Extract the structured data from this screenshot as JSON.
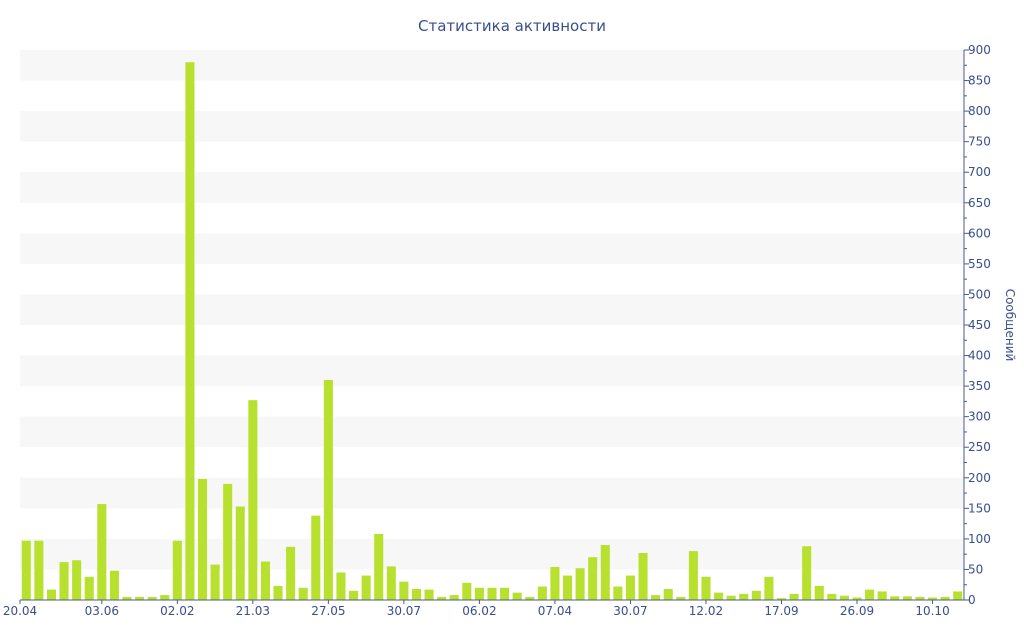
{
  "colors": {
    "bar": "#b8e02f",
    "text": "#3a4e8c",
    "axis": "#4a5a8c",
    "band": "#f7f7f7",
    "background": "#ffffff"
  },
  "chart_data": {
    "type": "bar",
    "title": "Статистика активности",
    "xlabel": "",
    "ylabel": "Сообщений",
    "y_axis_side": "right",
    "ylim": [
      0,
      900
    ],
    "y_ticks": [
      0,
      50,
      100,
      150,
      200,
      250,
      300,
      350,
      400,
      450,
      500,
      550,
      600,
      650,
      700,
      750,
      800,
      850,
      900
    ],
    "grid": "alternating horizontal bands",
    "legend": "none",
    "x_tick_labels": [
      {
        "index": 0,
        "label": "20.04"
      },
      {
        "index": 6,
        "label": "03.06"
      },
      {
        "index": 12,
        "label": "02.02"
      },
      {
        "index": 18,
        "label": "21.03"
      },
      {
        "index": 24,
        "label": "27.05"
      },
      {
        "index": 30,
        "label": "30.07"
      },
      {
        "index": 36,
        "label": "06.02"
      },
      {
        "index": 42,
        "label": "07.04"
      },
      {
        "index": 48,
        "label": "30.07"
      },
      {
        "index": 54,
        "label": "12.02"
      },
      {
        "index": 60,
        "label": "17.09"
      },
      {
        "index": 66,
        "label": "26.09"
      },
      {
        "index": 72,
        "label": "10.10"
      }
    ],
    "values": [
      97,
      97,
      17,
      62,
      65,
      38,
      157,
      48,
      5,
      5,
      5,
      8,
      97,
      880,
      198,
      58,
      190,
      153,
      327,
      63,
      23,
      87,
      20,
      138,
      360,
      45,
      15,
      40,
      108,
      55,
      30,
      18,
      17,
      5,
      8,
      28,
      20,
      20,
      20,
      12,
      5,
      22,
      54,
      40,
      52,
      70,
      90,
      22,
      40,
      77,
      8,
      18,
      5,
      80,
      38,
      12,
      7,
      10,
      15,
      38,
      3,
      10,
      88,
      23,
      10,
      7,
      4,
      17,
      14,
      6,
      6,
      5,
      4,
      5,
      14
    ]
  }
}
